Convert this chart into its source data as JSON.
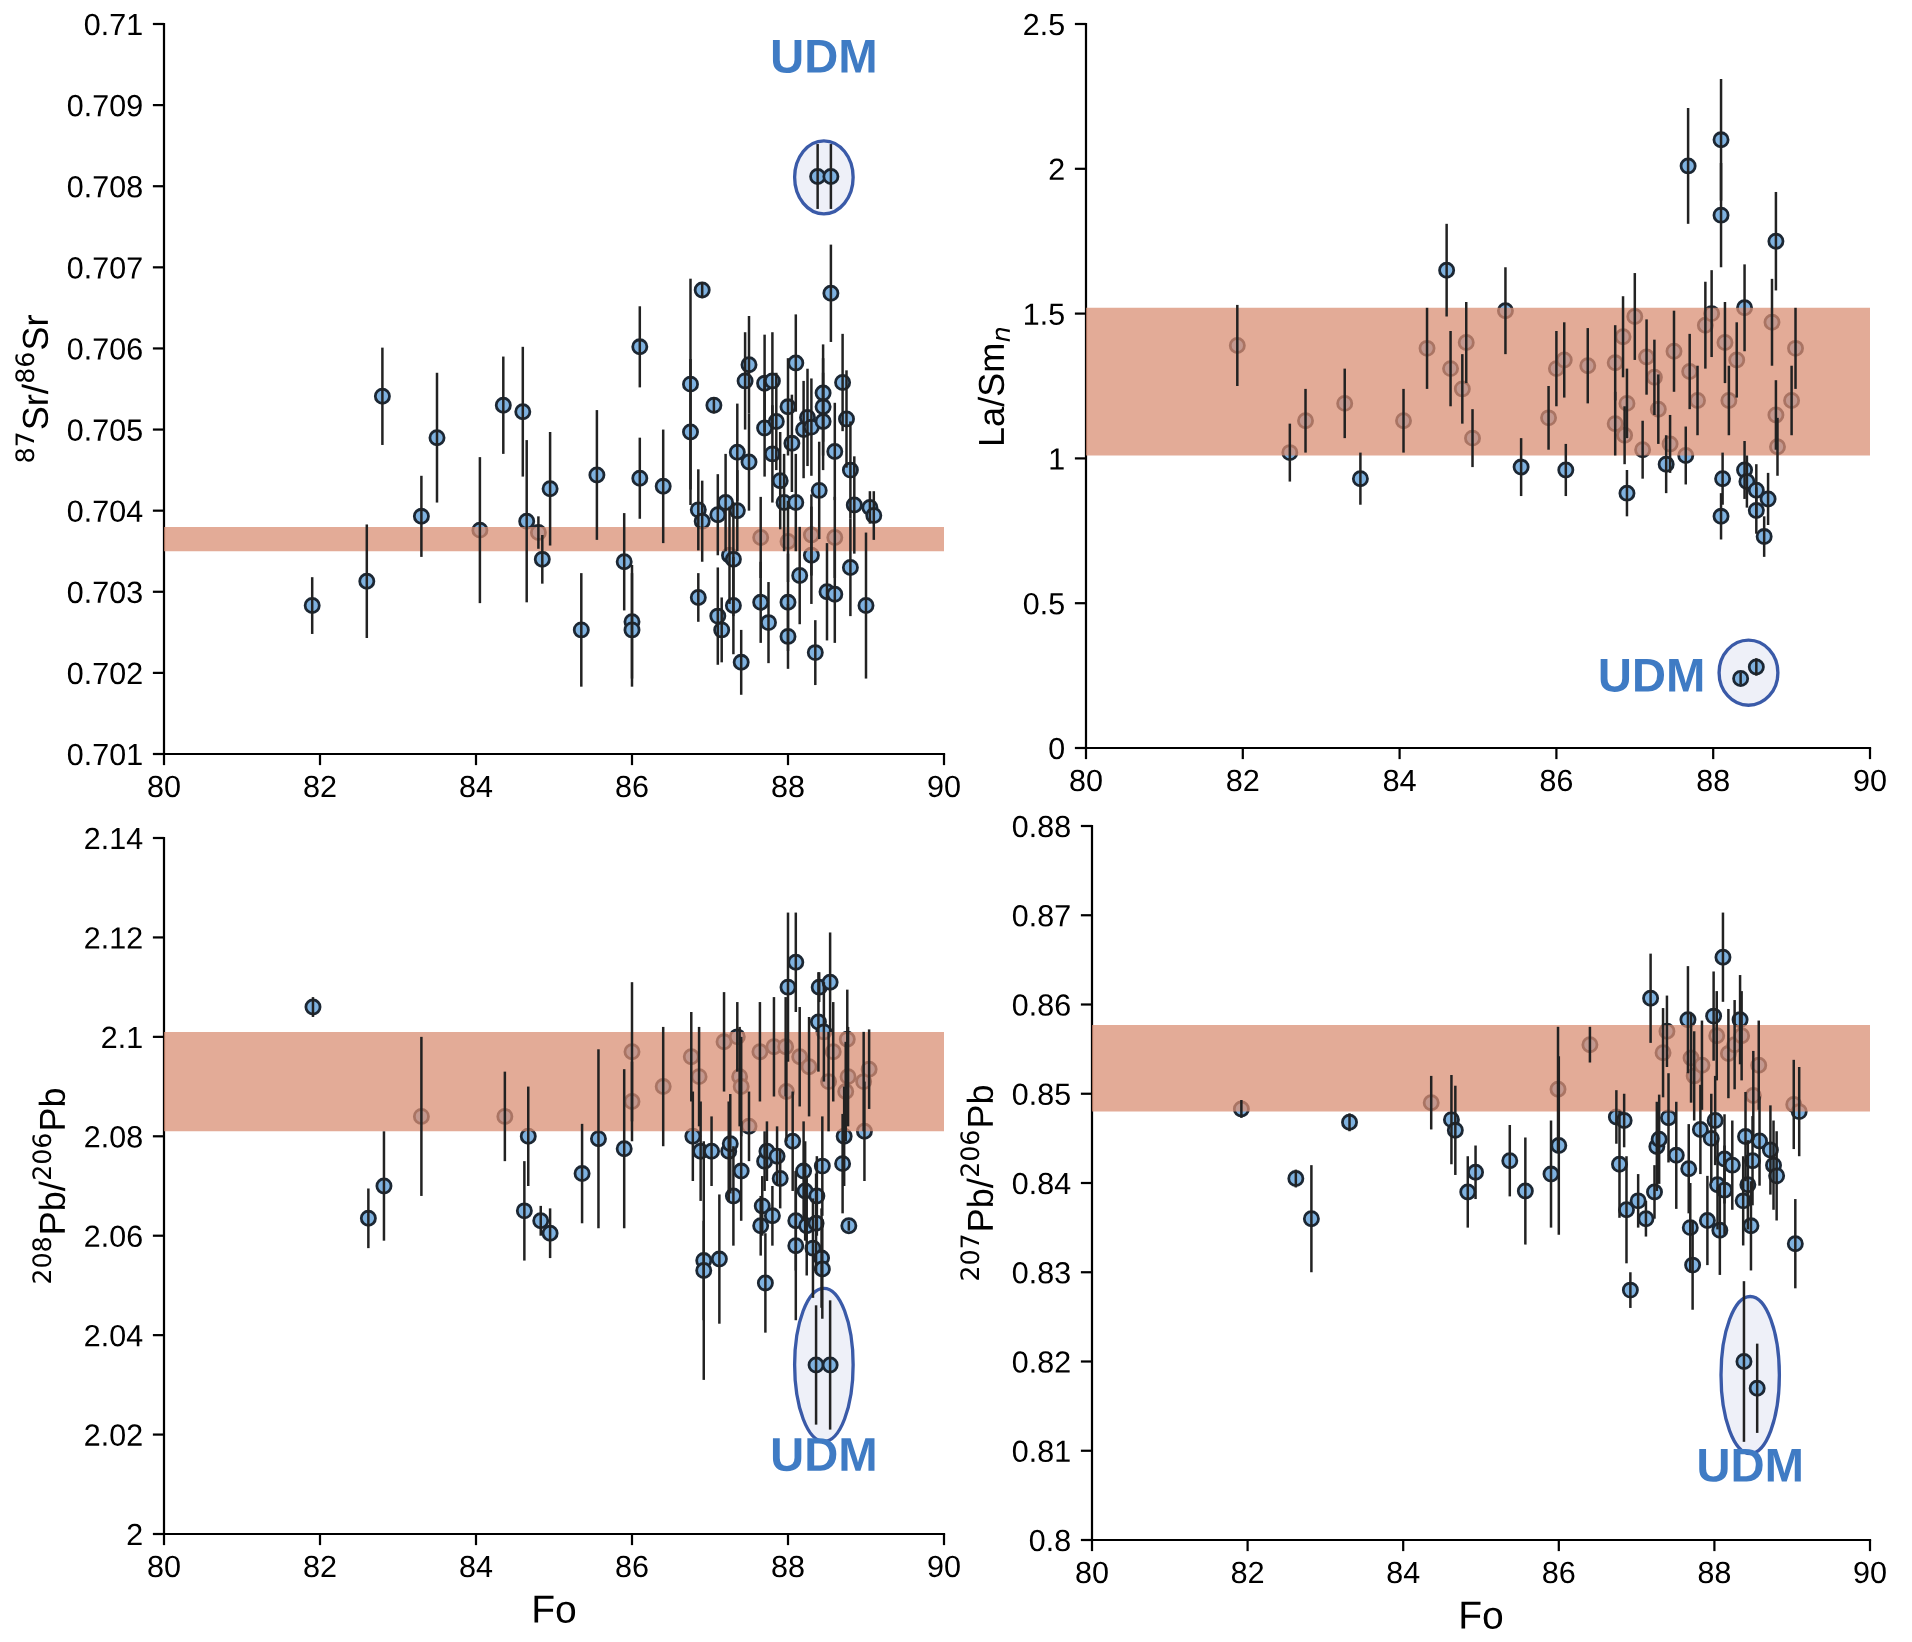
{
  "chart_data": [
    {
      "type": "scatter",
      "ylabel": "$^{87}$Sr/$^{86}$Sr",
      "xlim": [
        80,
        90
      ],
      "xticks": [
        80,
        82,
        84,
        86,
        88,
        90
      ],
      "ylim": [
        0.701,
        0.71
      ],
      "yticks": [
        0.701,
        0.702,
        0.703,
        0.704,
        0.705,
        0.706,
        0.707,
        0.708,
        0.709,
        0.71
      ],
      "marker": "circle",
      "grid": false,
      "bands": [
        {
          "axis": "y",
          "from": 0.7035,
          "to": 0.7038,
          "color": "#d98f74"
        }
      ],
      "annotations": [
        "UDM"
      ],
      "series": [
        {
          "color": "#7fb2e0",
          "x": [
            81.9,
            82.6,
            82.8,
            83.3,
            83.5,
            84.05,
            84.35,
            84.6,
            84.65,
            84.8,
            84.85,
            84.95,
            85.35,
            85.55,
            85.9,
            86.0,
            86.0,
            86.1,
            86.1,
            86.4,
            86.75,
            86.75,
            86.9,
            86.85,
            86.85,
            86.9,
            87.05,
            87.1,
            87.1,
            87.15,
            87.2,
            87.25,
            87.3,
            87.3,
            87.35,
            87.35,
            87.4,
            87.45,
            87.5,
            87.5,
            87.65,
            87.7,
            87.7,
            87.75,
            87.8,
            87.8,
            87.85,
            87.9,
            87.95,
            88.0,
            88.0,
            88.0,
            88.05,
            88.1,
            88.1,
            88.15,
            88.2,
            88.25,
            88.3,
            88.3,
            88.35,
            88.4,
            88.45,
            88.45,
            88.45,
            88.5,
            88.55,
            88.6,
            88.6,
            88.7,
            88.75,
            88.8,
            88.8,
            88.85,
            89.0,
            89.05,
            89.1,
            87.65,
            88.0,
            88.3,
            88.6,
            88.38,
            88.55
          ],
          "values": [
            0.70283,
            0.70313,
            0.70541,
            0.70393,
            0.7049,
            0.70376,
            0.7053,
            0.70522,
            0.70387,
            0.70373,
            0.7034,
            0.70427,
            0.70253,
            0.70444,
            0.70337,
            0.70263,
            0.70253,
            0.70602,
            0.7044,
            0.7043,
            0.70556,
            0.70497,
            0.70672,
            0.70401,
            0.70293,
            0.70387,
            0.7053,
            0.70395,
            0.7027,
            0.70253,
            0.7041,
            0.70345,
            0.70283,
            0.7034,
            0.70472,
            0.704,
            0.70213,
            0.7056,
            0.7058,
            0.7046,
            0.70287,
            0.70557,
            0.70502,
            0.70262,
            0.7056,
            0.7047,
            0.7051,
            0.70437,
            0.7041,
            0.70528,
            0.70287,
            0.70245,
            0.70483,
            0.70582,
            0.7041,
            0.7032,
            0.705,
            0.70515,
            0.70503,
            0.70345,
            0.70225,
            0.70425,
            0.70545,
            0.70528,
            0.7051,
            0.703,
            0.70668,
            0.70473,
            0.70297,
            0.70558,
            0.70513,
            0.7045,
            0.7033,
            0.70407,
            0.70283,
            0.70404,
            0.70394,
            0.70367,
            0.70362,
            0.7037,
            0.70367,
            0.70812,
            0.70812
          ],
          "errors": [
            0.00035,
            0.0007,
            0.0006,
            0.0005,
            0.0008,
            0.0009,
            0.0006,
            0.0008,
            0.001,
            0.0002,
            0.0003,
            0.0007,
            0.0007,
            0.0008,
            0.0006,
            0.0007,
            0.0007,
            0.0005,
            0.0005,
            0.0007,
            0.0013,
            0.0009,
            0.0001,
            0.0005,
            0.0003,
            0.0005,
            0.0001,
            0.0005,
            0.0006,
            0.0004,
            0.0006,
            0.0006,
            0.0006,
            0.0007,
            0.0006,
            0.0005,
            0.0004,
            0.0006,
            0.0006,
            0.0006,
            0.0005,
            0.0006,
            0.0006,
            0.0005,
            0.0006,
            0.0006,
            0.0006,
            0.0006,
            0.0006,
            0.0006,
            0.0006,
            0.0004,
            0.0006,
            0.0006,
            0.0006,
            0.0006,
            0.0006,
            0.0006,
            0.0006,
            0.0006,
            0.0004,
            0.0006,
            0.0006,
            0.0006,
            0.0006,
            0.0006,
            0.0006,
            0.0006,
            0.0006,
            0.0006,
            0.0006,
            0.0006,
            0.0006,
            0.0006,
            0.0009,
            0.0002,
            0.0003,
            0.0005,
            0.0005,
            0.0005,
            0.0005,
            0.0004,
            0.0004
          ]
        }
      ]
    },
    {
      "type": "scatter",
      "ylabel": "La/Sm$_{n}$",
      "xlim": [
        80,
        90
      ],
      "xticks": [
        80,
        82,
        84,
        86,
        88,
        90
      ],
      "ylim": [
        0,
        2.5
      ],
      "yticks": [
        0,
        0.5,
        1,
        1.5,
        2,
        2.5
      ],
      "marker": "circle",
      "grid": false,
      "bands": [
        {
          "axis": "y",
          "from": 1.01,
          "to": 1.52,
          "color": "#d98f74"
        }
      ],
      "annotations": [
        "UDM"
      ],
      "series": [
        {
          "color": "#7fb2e0",
          "x": [
            81.93,
            82.6,
            82.8,
            83.3,
            83.5,
            84.05,
            84.35,
            84.6,
            84.65,
            84.8,
            84.85,
            84.93,
            85.35,
            85.55,
            85.9,
            86.0,
            86.1,
            86.12,
            86.4,
            86.75,
            86.75,
            86.85,
            86.87,
            86.9,
            86.9,
            87.0,
            87.1,
            87.15,
            87.25,
            87.3,
            87.4,
            87.45,
            87.5,
            87.65,
            87.68,
            87.7,
            87.8,
            87.9,
            87.98,
            88.1,
            88.1,
            88.1,
            88.12,
            88.15,
            88.2,
            88.3,
            88.4,
            88.4,
            88.43,
            88.55,
            88.55,
            88.65,
            88.7,
            88.75,
            88.8,
            88.8,
            88.82,
            89.0,
            89.05,
            88.35,
            88.55
          ],
          "values": [
            1.39,
            1.02,
            1.13,
            1.19,
            0.93,
            1.13,
            1.38,
            1.65,
            1.31,
            1.24,
            1.4,
            1.07,
            1.51,
            0.97,
            1.14,
            1.31,
            1.34,
            0.96,
            1.32,
            1.33,
            1.12,
            1.42,
            1.08,
            0.88,
            1.19,
            1.49,
            1.03,
            1.35,
            1.28,
            1.17,
            0.98,
            1.05,
            1.37,
            1.01,
            2.01,
            1.3,
            1.2,
            1.46,
            1.5,
            2.1,
            1.84,
            0.8,
            0.93,
            1.4,
            1.2,
            1.34,
            1.52,
            0.96,
            0.92,
            0.89,
            0.82,
            0.73,
            0.86,
            1.47,
            1.75,
            1.15,
            1.04,
            1.2,
            1.38,
            0.24,
            0.28
          ],
          "errors": [
            0.14,
            0.1,
            0.11,
            0.12,
            0.09,
            0.11,
            0.14,
            0.16,
            0.13,
            0.12,
            0.14,
            0.1,
            0.15,
            0.1,
            0.11,
            0.13,
            0.13,
            0.09,
            0.13,
            0.13,
            0.11,
            0.14,
            0.1,
            0.08,
            0.12,
            0.15,
            0.1,
            0.13,
            0.13,
            0.12,
            0.1,
            0.1,
            0.14,
            0.1,
            0.2,
            0.13,
            0.12,
            0.15,
            0.15,
            0.21,
            0.18,
            0.08,
            0.09,
            0.14,
            0.12,
            0.13,
            0.15,
            0.1,
            0.09,
            0.09,
            0.08,
            0.07,
            0.09,
            0.15,
            0.17,
            0.12,
            0.1,
            0.12,
            0.14,
            0.02,
            0.03
          ]
        }
      ]
    },
    {
      "type": "scatter",
      "xlabel": "Fo",
      "ylabel": "$^{208}$Pb/$^{206}$Pb",
      "xlim": [
        80,
        90
      ],
      "xticks": [
        80,
        82,
        84,
        86,
        88,
        90
      ],
      "ylim": [
        2,
        2.14
      ],
      "yticks": [
        2,
        2.02,
        2.04,
        2.06,
        2.08,
        2.1,
        2.12,
        2.14
      ],
      "marker": "circle",
      "grid": false,
      "bands": [
        {
          "axis": "y",
          "from": 2.081,
          "to": 2.101,
          "color": "#d98f74"
        }
      ],
      "annotations": [
        "UDM"
      ],
      "series": [
        {
          "color": "#7fb2e0",
          "x": [
            81.91,
            82.62,
            82.82,
            83.3,
            84.37,
            84.67,
            84.62,
            84.83,
            84.95,
            85.36,
            85.57,
            85.9,
            86.0,
            86.0,
            86.4,
            86.76,
            86.78,
            86.86,
            86.88,
            86.92,
            86.92,
            87.02,
            87.12,
            87.18,
            87.24,
            87.26,
            87.3,
            87.35,
            87.38,
            87.4,
            87.4,
            87.5,
            87.64,
            87.65,
            87.67,
            87.7,
            87.71,
            87.73,
            87.8,
            87.82,
            87.86,
            87.9,
            87.97,
            87.98,
            88.0,
            88.1,
            88.06,
            88.1,
            88.1,
            88.15,
            88.2,
            88.22,
            88.24,
            88.27,
            88.32,
            88.36,
            88.37,
            88.39,
            88.4,
            88.43,
            88.44,
            88.44,
            88.46,
            88.52,
            88.54,
            88.58,
            88.7,
            88.72,
            88.74,
            88.76,
            88.77,
            88.78,
            88.97,
            88.98,
            89.04,
            88.36,
            88.54
          ],
          "values": [
            2.106,
            2.0635,
            2.07,
            2.084,
            2.084,
            2.08,
            2.065,
            2.063,
            2.0605,
            2.0725,
            2.0795,
            2.0775,
            2.097,
            2.087,
            2.09,
            2.096,
            2.08,
            2.092,
            2.077,
            2.055,
            2.053,
            2.077,
            2.0553,
            2.099,
            2.077,
            2.0785,
            2.068,
            2.1,
            2.092,
            2.09,
            2.073,
            2.082,
            2.097,
            2.062,
            2.066,
            2.075,
            2.0505,
            2.077,
            2.064,
            2.098,
            2.076,
            2.0715,
            2.098,
            2.089,
            2.11,
            2.115,
            2.079,
            2.063,
            2.058,
            2.096,
            2.073,
            2.069,
            2.062,
            2.094,
            2.0575,
            2.0625,
            2.068,
            2.103,
            2.11,
            2.0555,
            2.0533,
            2.074,
            2.101,
            2.091,
            2.111,
            2.097,
            2.0745,
            2.08,
            2.089,
            2.0995,
            2.092,
            2.062,
            2.091,
            2.081,
            2.0935,
            2.034,
            2.034
          ],
          "errors": [
            0.002,
            0.006,
            0.011,
            0.016,
            0.009,
            0.01,
            0.01,
            0.003,
            0.005,
            0.01,
            0.018,
            0.016,
            0.014,
            0.008,
            0.012,
            0.009,
            0.009,
            0.01,
            0.01,
            0.024,
            0.01,
            0.007,
            0.013,
            0.01,
            0.01,
            0.01,
            0.01,
            0.007,
            0.01,
            0.01,
            0.01,
            0.007,
            0.01,
            0.006,
            0.006,
            0.006,
            0.01,
            0.006,
            0.006,
            0.01,
            0.006,
            0.006,
            0.01,
            0.01,
            0.015,
            0.01,
            0.01,
            0.01,
            0.015,
            0.01,
            0.01,
            0.01,
            0.01,
            0.01,
            0.01,
            0.01,
            0.008,
            0.01,
            0.003,
            0.01,
            0.01,
            0.01,
            0.01,
            0.01,
            0.01,
            0.01,
            0.01,
            0.01,
            0.01,
            0.01,
            0.01,
            0.001,
            0.01,
            0.01,
            0.008,
            0.012,
            0.013
          ]
        }
      ]
    },
    {
      "type": "scatter",
      "xlabel": "Fo",
      "ylabel": "$^{207}$Pb/$^{206}$Pb",
      "xlim": [
        80,
        90
      ],
      "xticks": [
        80,
        82,
        84,
        86,
        88,
        90
      ],
      "ylim": [
        0.8,
        0.88
      ],
      "yticks": [
        0.8,
        0.81,
        0.82,
        0.83,
        0.84,
        0.85,
        0.86,
        0.87,
        0.88
      ],
      "marker": "circle",
      "grid": false,
      "bands": [
        {
          "axis": "y",
          "from": 0.848,
          "to": 0.8577,
          "color": "#d98f74"
        }
      ],
      "annotations": [
        "UDM"
      ],
      "series": [
        {
          "color": "#7fb2e0",
          "x": [
            81.92,
            82.62,
            82.82,
            83.31,
            84.36,
            84.62,
            84.67,
            84.83,
            84.93,
            85.37,
            85.57,
            85.9,
            85.99,
            86.0,
            86.4,
            86.74,
            86.78,
            86.84,
            86.87,
            86.92,
            87.02,
            87.12,
            87.18,
            87.23,
            87.26,
            87.29,
            87.34,
            87.39,
            87.41,
            87.51,
            87.66,
            87.67,
            87.69,
            87.72,
            87.7,
            87.74,
            87.82,
            87.84,
            87.91,
            87.96,
            87.99,
            88.01,
            88.03,
            88.04,
            88.07,
            88.11,
            88.13,
            88.13,
            88.18,
            88.23,
            88.26,
            88.33,
            88.35,
            88.37,
            88.4,
            88.43,
            88.47,
            88.49,
            88.5,
            88.57,
            88.58,
            88.72,
            88.76,
            88.8,
            89.02,
            89.04,
            89.09,
            88.38,
            88.55
          ],
          "values": [
            0.8483,
            0.8405,
            0.836,
            0.8468,
            0.849,
            0.8471,
            0.8459,
            0.839,
            0.8412,
            0.8425,
            0.8391,
            0.841,
            0.8505,
            0.8442,
            0.8555,
            0.8474,
            0.8421,
            0.847,
            0.837,
            0.828,
            0.838,
            0.836,
            0.8607,
            0.839,
            0.8441,
            0.8449,
            0.8546,
            0.857,
            0.8473,
            0.8431,
            0.8583,
            0.8416,
            0.835,
            0.8308,
            0.854,
            0.852,
            0.846,
            0.8532,
            0.8358,
            0.845,
            0.8587,
            0.847,
            0.8565,
            0.8398,
            0.8347,
            0.8653,
            0.8427,
            0.8392,
            0.8545,
            0.842,
            0.8555,
            0.8583,
            0.8565,
            0.838,
            0.8452,
            0.8398,
            0.8352,
            0.8425,
            0.8498,
            0.8532,
            0.8447,
            0.8437,
            0.842,
            0.8408,
            0.8488,
            0.8332,
            0.848,
            0.82,
            0.817
          ],
          "errors": [
            0.001,
            0.001,
            0.006,
            0.001,
            0.003,
            0.005,
            0.005,
            0.004,
            0.003,
            0.004,
            0.006,
            0.006,
            0.007,
            0.01,
            0.002,
            0.003,
            0.006,
            0.003,
            0.006,
            0.002,
            0.003,
            0.002,
            0.005,
            0.003,
            0.005,
            0.005,
            0.005,
            0.004,
            0.005,
            0.006,
            0.006,
            0.005,
            0.005,
            0.005,
            0.005,
            0.005,
            0.005,
            0.005,
            0.005,
            0.005,
            0.005,
            0.005,
            0.005,
            0.005,
            0.005,
            0.005,
            0.005,
            0.005,
            0.005,
            0.005,
            0.005,
            0.005,
            0.005,
            0.005,
            0.005,
            0.005,
            0.005,
            0.005,
            0.005,
            0.005,
            0.005,
            0.005,
            0.005,
            0.005,
            0.005,
            0.005,
            0.005,
            0.009,
            0.005
          ]
        }
      ]
    }
  ]
}
